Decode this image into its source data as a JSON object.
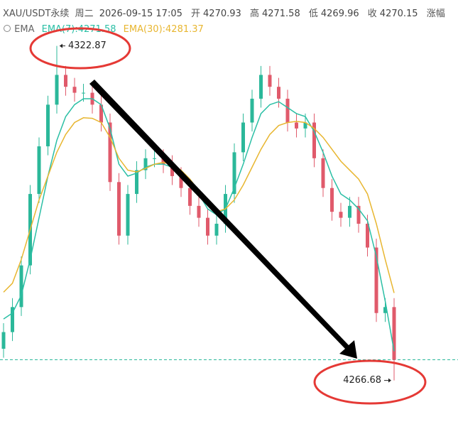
{
  "header": {
    "symbol": "XAU/USDT永续",
    "weekday": "周二",
    "datetime": "2026-09-15 17:05",
    "open_label": "开",
    "open": 4270.93,
    "high_label": "高",
    "high": 4271.58,
    "low_label": "低",
    "low": 4269.96,
    "close_label": "收",
    "close": 4270.15,
    "change_label": "涨幅"
  },
  "legend_title": "EMA",
  "chart_data": {
    "type": "candlestick",
    "up_color": "#2bb89a",
    "down_color": "#e05a6b",
    "ylim": [
      4259,
      4327
    ],
    "open": [
      4272,
      4274.8,
      4279,
      4286,
      4298,
      4306,
      4313,
      4318,
      4316,
      4315,
      4315,
      4313,
      4310,
      4300,
      4291,
      4298,
      4302,
      4304,
      4304,
      4303,
      4301,
      4299,
      4296,
      4294,
      4291,
      4293,
      4298,
      4305,
      4310,
      4314,
      4318,
      4316,
      4314,
      4310,
      4309,
      4310,
      4304,
      4299,
      4295,
      4294,
      4296,
      4293,
      4289,
      4278,
      4279
    ],
    "high": [
      4276.3,
      4280.5,
      4287.5,
      4299.5,
      4307.5,
      4314.5,
      4322.87,
      4319.5,
      4317.5,
      4316.5,
      4316.5,
      4314.5,
      4311.5,
      4301.5,
      4299.5,
      4303.5,
      4305.5,
      4305.5,
      4305.5,
      4304.5,
      4302.5,
      4300.5,
      4297.5,
      4295.5,
      4294.5,
      4299.5,
      4306.5,
      4311.5,
      4315.5,
      4319.5,
      4319.5,
      4317.5,
      4315.5,
      4311.5,
      4311.5,
      4311.5,
      4305.5,
      4300.5,
      4296.5,
      4297.5,
      4297.5,
      4294.5,
      4290.5,
      4280.5,
      4280.5
    ],
    "low": [
      4270.5,
      4273.3,
      4277.5,
      4284.5,
      4296.5,
      4304.5,
      4311.5,
      4314.5,
      4313.5,
      4313.5,
      4311.5,
      4308.5,
      4298.5,
      4289.5,
      4289.5,
      4296.5,
      4300.5,
      4302.5,
      4301.5,
      4299.5,
      4297.5,
      4294.5,
      4292.5,
      4289.5,
      4289.5,
      4291.5,
      4296.5,
      4303.5,
      4308.5,
      4312.5,
      4314.5,
      4312.5,
      4308.5,
      4307.5,
      4307.5,
      4302.5,
      4297.5,
      4293.5,
      4292.5,
      4292.5,
      4291.5,
      4287.5,
      4276.5,
      4276.5,
      4266.68
    ],
    "close": [
      4274.8,
      4279,
      4286,
      4298,
      4306,
      4313,
      4318,
      4316,
      4315,
      4315,
      4313,
      4310,
      4300,
      4291,
      4298,
      4302,
      4304,
      4304,
      4303,
      4301,
      4299,
      4296,
      4294,
      4291,
      4293,
      4298,
      4305,
      4310,
      4314,
      4318,
      4316,
      4314,
      4310,
      4309,
      4310,
      4304,
      4299,
      4295,
      4294,
      4296,
      4293,
      4289,
      4278,
      4279,
      4270.15
    ],
    "series": [
      {
        "name": "EMA(7):4271.58",
        "color": "#2bbfa5",
        "values": [
          4277,
          4278,
          4281,
          4287,
          4294,
          4301,
          4307,
          4311,
          4313,
          4314,
          4314,
          4313,
          4309,
          4303,
          4301,
          4301.5,
          4302.5,
          4303,
          4303,
          4302.5,
          4301.5,
          4300,
          4298,
          4295.5,
          4294.5,
          4295.5,
          4299,
          4303,
          4307.5,
          4311.5,
          4313,
          4313.5,
          4312.5,
          4311.5,
          4311,
          4308.5,
          4305,
          4301,
          4298,
          4297,
          4295.5,
          4293.5,
          4287.5,
          4280,
          4271.58
        ]
      },
      {
        "name": "EMA(30):4281.37",
        "color": "#e8b630",
        "values": [
          4281.5,
          4283,
          4287,
          4292,
          4297,
          4301,
          4305,
          4308,
          4310,
          4310.8,
          4310.7,
          4310,
          4307.5,
          4304,
          4302,
          4301.7,
          4302.3,
          4303,
          4303.3,
          4303,
          4302,
          4300.5,
          4298.5,
          4296.5,
          4295,
          4295.5,
          4297,
          4299.5,
          4302.5,
          4305.5,
          4308,
          4309.5,
          4310,
          4310.2,
          4310,
          4309,
          4307.5,
          4305.5,
          4303.5,
          4302,
          4300.5,
          4298,
          4293,
          4287,
          4281.37
        ]
      }
    ],
    "annotations": {
      "max": 4322.87,
      "min": 4266.68
    }
  }
}
